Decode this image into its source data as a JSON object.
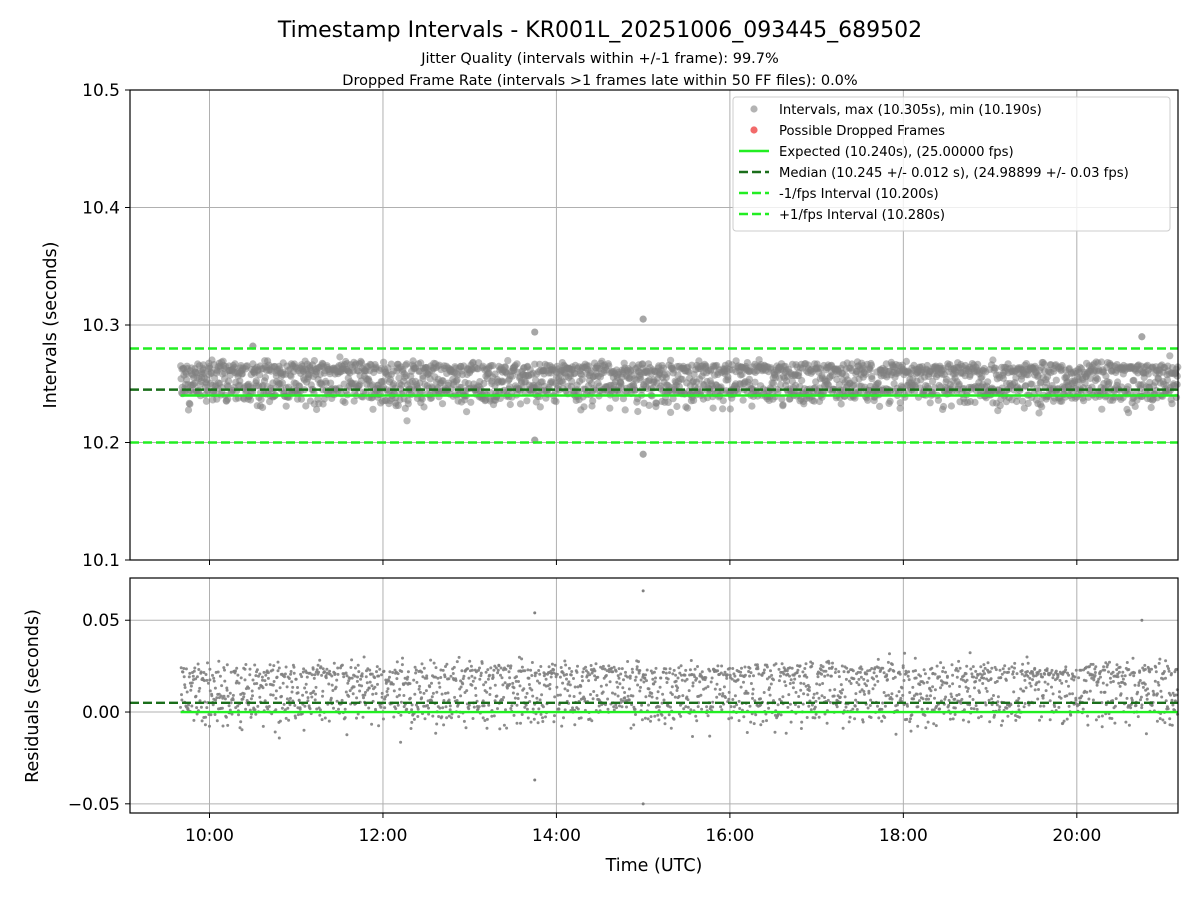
{
  "figure": {
    "title": "Timestamp Intervals - KR001L_20251006_093445_689502",
    "subtitle_lines": [
      "Jitter Quality (intervals within +/-1 frame): 99.7%",
      "Dropped Frame Rate (intervals >1 frames late within 50 FF files): 0.0%"
    ]
  },
  "colors": {
    "interval_points": "#808080",
    "dropped_points": "#f05050",
    "expected_line": "#22ee22",
    "median_line": "#1a6e1a",
    "fps_interval_lines": "#22ee22",
    "grid": "#b0b0b0"
  },
  "chart_data": [
    {
      "type": "scatter",
      "panel": "top",
      "xlabel": "",
      "ylabel": "Intervals (seconds)",
      "x_axis": "time (UTC)",
      "xlim": [
        "09:05",
        "21:10"
      ],
      "ylim": [
        10.1,
        10.5
      ],
      "yticks": [
        "10.1",
        "10.2",
        "10.3",
        "10.4",
        "10.5"
      ],
      "grid": true,
      "legend_placement": "top-right",
      "series": [
        {
          "name": "Intervals, max (10.305s), min (10.190s)",
          "kind": "points",
          "x_range": [
            "09:40",
            "21:10"
          ],
          "y_bands": [
            {
              "center": 10.245,
              "spread": 0.012
            },
            {
              "center": 10.262,
              "spread": 0.006
            }
          ],
          "notable_points": [
            {
              "x": "13:45",
              "y": 10.294
            },
            {
              "x": "15:00",
              "y": 10.305
            },
            {
              "x": "15:00",
              "y": 10.19
            },
            {
              "x": "20:45",
              "y": 10.29
            },
            {
              "x": "13:45",
              "y": 10.202
            },
            {
              "x": "10:30",
              "y": 10.282
            }
          ]
        },
        {
          "name": "Possible Dropped Frames",
          "kind": "points",
          "values": []
        },
        {
          "name": "Expected (10.240s), (25.00000 fps)",
          "kind": "hline",
          "y": 10.24,
          "style": "solid",
          "x_start": "09:40"
        },
        {
          "name": "Median (10.245 +/- 0.012 s), (24.98899 +/- 0.03 fps)",
          "kind": "hline",
          "y": 10.245,
          "style": "dashed"
        },
        {
          "name": "-1/fps Interval (10.200s)",
          "kind": "hline",
          "y": 10.2,
          "style": "dashed"
        },
        {
          "name": "+1/fps Interval (10.280s)",
          "kind": "hline",
          "y": 10.28,
          "style": "dashed"
        }
      ]
    },
    {
      "type": "scatter",
      "panel": "bottom",
      "xlabel": "Time (UTC)",
      "ylabel": "Residuals (seconds)",
      "xlim": [
        "09:05",
        "21:10"
      ],
      "ylim": [
        -0.055,
        0.073
      ],
      "xticks": [
        "10:00",
        "12:00",
        "14:00",
        "16:00",
        "18:00",
        "20:00"
      ],
      "yticks": [
        "0.05",
        "0.00",
        "−0.05"
      ],
      "ytick_values": [
        0.05,
        0.0,
        -0.05
      ],
      "grid": true,
      "series": [
        {
          "name": "Residuals",
          "kind": "points",
          "x_range": [
            "09:40",
            "21:10"
          ],
          "y_bands": [
            {
              "center": 0.005,
              "spread": 0.012
            },
            {
              "center": 0.021,
              "spread": 0.006
            }
          ],
          "notable_points": [
            {
              "x": "13:45",
              "y": 0.054
            },
            {
              "x": "15:00",
              "y": 0.066
            },
            {
              "x": "15:00",
              "y": -0.05
            },
            {
              "x": "20:45",
              "y": 0.05
            },
            {
              "x": "13:45",
              "y": -0.037
            }
          ]
        },
        {
          "name": "Expected",
          "kind": "hline",
          "y": 0.0,
          "style": "solid",
          "x_start": "09:40"
        },
        {
          "name": "Median",
          "kind": "hline",
          "y": 0.005,
          "style": "dashed"
        }
      ]
    }
  ]
}
